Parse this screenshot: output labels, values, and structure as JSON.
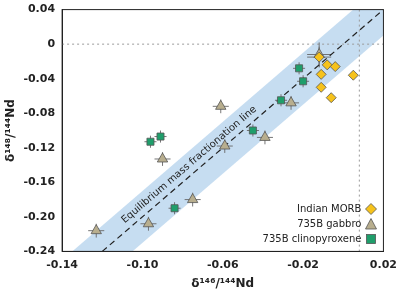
{
  "chart_data": {
    "type": "scatter",
    "x_label": "δ¹⁴⁶/¹⁴⁴Nd",
    "y_label": "δ¹⁴⁸/¹⁴⁴Nd",
    "xlim": [
      -0.14,
      0.02
    ],
    "xticks": [
      -0.14,
      {
        "value": -0.1,
        "label": "-0.10"
      },
      -0.06,
      -0.02,
      0.02
    ],
    "ylim": [
      -0.24,
      0.04
    ],
    "yticks": [
      -0.24,
      {
        "value": -0.2,
        "label": "-0.20"
      },
      -0.16,
      -0.12,
      -0.08,
      -0.04,
      0,
      0.04
    ],
    "grid": false,
    "legend": "lower right",
    "series": [
      {
        "name": "Indian MORB",
        "color": "#f6c21b",
        "marker": "diamond",
        "x": [
          -0.012,
          -0.008,
          -0.004,
          -0.011,
          0.005,
          -0.011,
          -0.006
        ],
        "y": [
          -0.015,
          -0.024,
          -0.026,
          -0.035,
          -0.036,
          -0.05,
          -0.062
        ],
        "x_error": [
          0.006,
          0.002,
          0.002,
          0.002,
          0.002,
          0.002,
          0.002
        ],
        "y_error": [
          0.012,
          0.005,
          0.005,
          0.005,
          0.005,
          0.005,
          0.005
        ]
      },
      {
        "name": "735B gabbro",
        "color": "#b8ae8e",
        "marker": "triangle",
        "x": [
          -0.123,
          -0.097,
          -0.075,
          -0.09,
          -0.059,
          -0.061,
          -0.039,
          -0.026,
          -0.012
        ],
        "y": [
          -0.216,
          -0.208,
          -0.18,
          -0.133,
          -0.118,
          -0.072,
          -0.108,
          -0.068,
          -0.012
        ],
        "x_error": [
          0.004,
          0.004,
          0.004,
          0.004,
          0.004,
          0.004,
          0.004,
          0.004,
          0.006
        ],
        "y_error": [
          0.008,
          0.008,
          0.008,
          0.008,
          0.008,
          0.008,
          0.008,
          0.008,
          0.014
        ]
      },
      {
        "name": "735B clinopyroxene",
        "color": "#1f9e6b",
        "marker": "square",
        "x": [
          -0.096,
          -0.091,
          -0.084,
          -0.045,
          -0.031,
          -0.022,
          -0.02
        ],
        "y": [
          -0.113,
          -0.107,
          -0.19,
          -0.1,
          -0.065,
          -0.028,
          -0.043
        ],
        "x_error": [
          0.003,
          0.003,
          0.003,
          0.003,
          0.003,
          0.003,
          0.003
        ],
        "y_error": [
          0.007,
          0.007,
          0.007,
          0.007,
          0.007,
          0.007,
          0.007
        ]
      }
    ],
    "equilibrium_line": {
      "label": "Equilibrium mass fractionation line",
      "x": [
        -0.12,
        0.02
      ],
      "y": [
        -0.24,
        0.04
      ],
      "line_style": "dashed",
      "color": "#222222"
    },
    "band": {
      "color": "#b3d1ec",
      "upper": {
        "x": [
          -0.135,
          0.005
        ],
        "y": [
          -0.24,
          0.04
        ]
      },
      "lower": {
        "x": [
          -0.105,
          0.02
        ],
        "y": [
          -0.24,
          0.01
        ]
      }
    },
    "reference_lines": {
      "x": [
        0.008
      ],
      "y": [
        0
      ],
      "line_style": "dotted",
      "color": "#9a9a9a"
    }
  }
}
